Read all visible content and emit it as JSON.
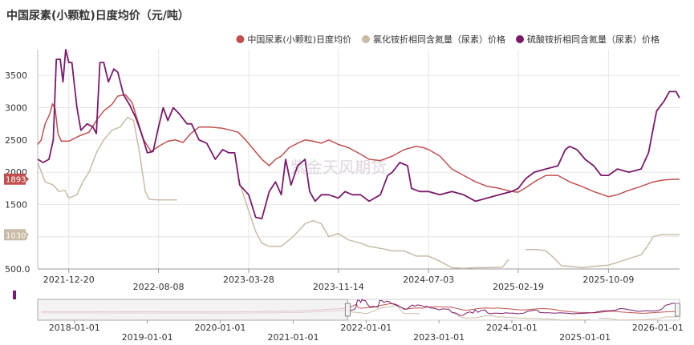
{
  "chart_data": {
    "type": "line",
    "title": "中国尿素(小颗粒)日度均价（元/吨）",
    "legend_position": "top-right",
    "grid": true,
    "ylim": [
      500,
      3900
    ],
    "y_ticks": [
      "3500",
      "3000",
      "2500",
      "2000",
      "1500",
      "1000",
      "500.0"
    ],
    "y_tick_values": [
      3500,
      3000,
      2500,
      2000,
      1500,
      1000,
      500
    ],
    "x_range": [
      "2021-10-01",
      "2026-04-10"
    ],
    "x_ticks": [
      "2021-12-20",
      "2022-08-08",
      "2023-03-28",
      "2023-11-14",
      "2024-07-03",
      "2025-02-19",
      "2025-10-09"
    ],
    "watermark": "紫金天风期货",
    "end_badges": [
      {
        "label": "1893",
        "value": 1893,
        "color": "#c0504d"
      },
      {
        "label": "1030",
        "value": 1030,
        "color": "#c9bba5"
      }
    ],
    "series": [
      {
        "name": "中国尿素(小颗粒)日度均价",
        "color": "#c0504d",
        "points": [
          [
            "2021-10-01",
            2430
          ],
          [
            "2021-10-10",
            2500
          ],
          [
            "2021-10-20",
            2750
          ],
          [
            "2021-11-01",
            2900
          ],
          [
            "2021-11-08",
            3060
          ],
          [
            "2021-11-15",
            2980
          ],
          [
            "2021-11-22",
            2600
          ],
          [
            "2021-12-01",
            2480
          ],
          [
            "2021-12-20",
            2480
          ],
          [
            "2022-01-15",
            2560
          ],
          [
            "2022-02-10",
            2620
          ],
          [
            "2022-03-01",
            2800
          ],
          [
            "2022-03-20",
            2950
          ],
          [
            "2022-04-10",
            3050
          ],
          [
            "2022-04-25",
            3180
          ],
          [
            "2022-05-15",
            3200
          ],
          [
            "2022-06-01",
            3080
          ],
          [
            "2022-06-15",
            2800
          ],
          [
            "2022-07-01",
            2500
          ],
          [
            "2022-07-20",
            2320
          ],
          [
            "2022-08-08",
            2400
          ],
          [
            "2022-09-01",
            2480
          ],
          [
            "2022-09-20",
            2500
          ],
          [
            "2022-10-10",
            2460
          ],
          [
            "2022-10-30",
            2600
          ],
          [
            "2022-11-20",
            2700
          ],
          [
            "2022-12-20",
            2700
          ],
          [
            "2023-01-20",
            2680
          ],
          [
            "2023-02-10",
            2650
          ],
          [
            "2023-03-01",
            2620
          ],
          [
            "2023-03-20",
            2500
          ],
          [
            "2023-04-10",
            2350
          ],
          [
            "2023-05-01",
            2200
          ],
          [
            "2023-05-20",
            2100
          ],
          [
            "2023-06-05",
            2200
          ],
          [
            "2023-06-20",
            2250
          ],
          [
            "2023-07-10",
            2380
          ],
          [
            "2023-08-01",
            2450
          ],
          [
            "2023-08-20",
            2500
          ],
          [
            "2023-09-10",
            2480
          ],
          [
            "2023-10-01",
            2450
          ],
          [
            "2023-10-20",
            2500
          ],
          [
            "2023-11-14",
            2430
          ],
          [
            "2023-12-10",
            2380
          ],
          [
            "2024-01-10",
            2280
          ],
          [
            "2024-02-01",
            2200
          ],
          [
            "2024-03-01",
            2180
          ],
          [
            "2024-04-01",
            2250
          ],
          [
            "2024-05-01",
            2350
          ],
          [
            "2024-06-01",
            2400
          ],
          [
            "2024-06-20",
            2380
          ],
          [
            "2024-07-03",
            2350
          ],
          [
            "2024-08-01",
            2250
          ],
          [
            "2024-09-01",
            2050
          ],
          [
            "2024-10-01",
            1950
          ],
          [
            "2024-11-01",
            1850
          ],
          [
            "2024-12-01",
            1780
          ],
          [
            "2025-01-01",
            1750
          ],
          [
            "2025-02-01",
            1700
          ],
          [
            "2025-02-19",
            1690
          ],
          [
            "2025-03-10",
            1760
          ],
          [
            "2025-04-01",
            1850
          ],
          [
            "2025-05-01",
            1950
          ],
          [
            "2025-06-01",
            1950
          ],
          [
            "2025-07-01",
            1850
          ],
          [
            "2025-08-01",
            1780
          ],
          [
            "2025-09-01",
            1700
          ],
          [
            "2025-10-09",
            1620
          ],
          [
            "2025-11-01",
            1650
          ],
          [
            "2025-12-01",
            1720
          ],
          [
            "2026-01-01",
            1780
          ],
          [
            "2026-02-01",
            1850
          ],
          [
            "2026-03-01",
            1880
          ],
          [
            "2026-04-10",
            1893
          ]
        ]
      },
      {
        "name": "氯化铵折相同含氮量（尿素）价格",
        "color": "#c9bba5",
        "points": [
          [
            "2021-10-01",
            2150
          ],
          [
            "2021-10-20",
            1850
          ],
          [
            "2021-11-10",
            1800
          ],
          [
            "2021-11-25",
            1700
          ],
          [
            "2021-12-10",
            1720
          ],
          [
            "2021-12-20",
            1600
          ],
          [
            "2022-01-10",
            1650
          ],
          [
            "2022-01-25",
            1850
          ],
          [
            "2022-02-10",
            2000
          ],
          [
            "2022-03-01",
            2300
          ],
          [
            "2022-03-20",
            2500
          ],
          [
            "2022-04-10",
            2650
          ],
          [
            "2022-05-01",
            2700
          ],
          [
            "2022-05-20",
            2850
          ],
          [
            "2022-06-05",
            2800
          ],
          [
            "2022-06-20",
            2300
          ],
          [
            "2022-07-05",
            1700
          ],
          [
            "2022-07-15",
            1580
          ],
          [
            "2022-08-08",
            1570
          ],
          [
            "2022-09-01",
            1570
          ],
          [
            "2022-09-25",
            1570
          ],
          [
            null,
            null
          ],
          [
            "2023-03-01",
            1900
          ],
          [
            "2023-03-28",
            1400
          ],
          [
            "2023-04-15",
            1080
          ],
          [
            "2023-05-01",
            900
          ],
          [
            "2023-05-20",
            850
          ],
          [
            "2023-06-20",
            850
          ],
          [
            "2023-07-20",
            1000
          ],
          [
            "2023-08-20",
            1200
          ],
          [
            "2023-09-10",
            1250
          ],
          [
            "2023-10-01",
            1200
          ],
          [
            "2023-10-20",
            1000
          ],
          [
            "2023-11-14",
            1050
          ],
          [
            "2023-12-10",
            950
          ],
          [
            "2024-01-10",
            900
          ],
          [
            "2024-02-01",
            850
          ],
          [
            "2024-03-01",
            820
          ],
          [
            "2024-04-01",
            780
          ],
          [
            "2024-05-01",
            780
          ],
          [
            "2024-06-01",
            700
          ],
          [
            "2024-07-03",
            700
          ],
          [
            "2024-08-01",
            620
          ],
          [
            "2024-09-01",
            520
          ],
          [
            "2024-10-01",
            510
          ],
          [
            "2024-11-01",
            520
          ],
          [
            "2024-12-01",
            520
          ],
          [
            "2025-01-10",
            530
          ],
          [
            "2025-01-25",
            650
          ],
          [
            null,
            null
          ],
          [
            "2025-03-10",
            800
          ],
          [
            "2025-04-10",
            800
          ],
          [
            "2025-05-01",
            780
          ],
          [
            "2025-05-20",
            680
          ],
          [
            "2025-06-10",
            550
          ],
          [
            "2025-07-01",
            540
          ],
          [
            "2025-08-01",
            520
          ],
          [
            "2025-09-01",
            540
          ],
          [
            "2025-10-09",
            560
          ],
          [
            "2025-11-01",
            600
          ],
          [
            "2025-12-01",
            660
          ],
          [
            "2026-01-01",
            720
          ],
          [
            "2026-01-20",
            880
          ],
          [
            "2026-02-01",
            1000
          ],
          [
            "2026-02-20",
            1030
          ],
          [
            "2026-04-10",
            1030
          ]
        ]
      },
      {
        "name": "硫酸铵折相同含氮量（尿素）价格",
        "color": "#7b1a6b",
        "points": [
          [
            "2021-10-01",
            2200
          ],
          [
            "2021-10-15",
            2150
          ],
          [
            "2021-10-30",
            2200
          ],
          [
            "2021-11-10",
            2500
          ],
          [
            "2021-11-18",
            3750
          ],
          [
            "2021-11-28",
            3750
          ],
          [
            "2021-12-05",
            3400
          ],
          [
            "2021-12-12",
            3900
          ],
          [
            "2021-12-20",
            3700
          ],
          [
            "2021-12-28",
            3700
          ],
          [
            "2022-01-10",
            3000
          ],
          [
            "2022-01-20",
            2650
          ],
          [
            "2022-02-05",
            2750
          ],
          [
            "2022-02-20",
            2700
          ],
          [
            "2022-03-01",
            2600
          ],
          [
            "2022-03-10",
            3700
          ],
          [
            "2022-03-20",
            3700
          ],
          [
            "2022-04-01",
            3400
          ],
          [
            "2022-04-15",
            3600
          ],
          [
            "2022-04-25",
            3550
          ],
          [
            "2022-05-10",
            3200
          ],
          [
            "2022-05-25",
            3050
          ],
          [
            "2022-06-10",
            2850
          ],
          [
            "2022-06-25",
            2600
          ],
          [
            "2022-07-10",
            2300
          ],
          [
            "2022-07-25",
            2320
          ],
          [
            "2022-08-08",
            2700
          ],
          [
            "2022-08-20",
            3000
          ],
          [
            "2022-09-01",
            2800
          ],
          [
            "2022-09-15",
            3000
          ],
          [
            "2022-10-01",
            2900
          ],
          [
            "2022-10-20",
            2750
          ],
          [
            "2022-11-01",
            2750
          ],
          [
            "2022-11-20",
            2500
          ],
          [
            "2022-12-10",
            2450
          ],
          [
            "2023-01-01",
            2200
          ],
          [
            "2023-01-20",
            2350
          ],
          [
            "2023-02-05",
            2300
          ],
          [
            "2023-02-20",
            2300
          ],
          [
            "2023-03-05",
            1800
          ],
          [
            "2023-03-28",
            1650
          ],
          [
            "2023-04-15",
            1300
          ],
          [
            "2023-05-01",
            1280
          ],
          [
            "2023-05-20",
            1700
          ],
          [
            "2023-06-05",
            1850
          ],
          [
            "2023-06-20",
            1650
          ],
          [
            "2023-07-01",
            2200
          ],
          [
            "2023-07-15",
            1800
          ],
          [
            "2023-08-01",
            2100
          ],
          [
            "2023-08-20",
            2200
          ],
          [
            "2023-09-01",
            1700
          ],
          [
            "2023-09-15",
            1550
          ],
          [
            "2023-10-01",
            1650
          ],
          [
            "2023-10-20",
            1650
          ],
          [
            "2023-11-14",
            1600
          ],
          [
            "2023-12-01",
            1700
          ],
          [
            "2023-12-20",
            1650
          ],
          [
            "2024-01-10",
            1650
          ],
          [
            "2024-02-01",
            1550
          ],
          [
            "2024-03-01",
            1650
          ],
          [
            "2024-03-20",
            1950
          ],
          [
            "2024-04-01",
            2000
          ],
          [
            "2024-04-20",
            2150
          ],
          [
            "2024-05-10",
            2100
          ],
          [
            "2024-05-20",
            1750
          ],
          [
            "2024-06-10",
            1700
          ],
          [
            "2024-07-03",
            1700
          ],
          [
            "2024-08-01",
            1650
          ],
          [
            "2024-09-01",
            1700
          ],
          [
            "2024-10-01",
            1650
          ],
          [
            "2024-11-01",
            1550
          ],
          [
            "2024-12-01",
            1600
          ],
          [
            "2025-01-01",
            1650
          ],
          [
            "2025-02-01",
            1700
          ],
          [
            "2025-02-19",
            1750
          ],
          [
            "2025-03-10",
            1900
          ],
          [
            "2025-04-01",
            2000
          ],
          [
            "2025-05-01",
            2050
          ],
          [
            "2025-06-01",
            2100
          ],
          [
            "2025-06-20",
            2350
          ],
          [
            "2025-07-01",
            2400
          ],
          [
            "2025-07-20",
            2350
          ],
          [
            "2025-08-10",
            2200
          ],
          [
            "2025-09-01",
            2100
          ],
          [
            "2025-09-20",
            1950
          ],
          [
            "2025-10-09",
            1950
          ],
          [
            "2025-11-01",
            2050
          ],
          [
            "2025-12-01",
            2000
          ],
          [
            "2026-01-01",
            2050
          ],
          [
            "2026-01-20",
            2300
          ],
          [
            "2026-02-10",
            2950
          ],
          [
            "2026-03-01",
            3100
          ],
          [
            "2026-03-15",
            3250
          ],
          [
            "2026-04-01",
            3250
          ],
          [
            "2026-04-10",
            3150
          ]
        ]
      }
    ],
    "navigator": {
      "x_ticks": [
        "2018-01-01",
        "2019-01-01",
        "2020-01-01",
        "2021-01-01",
        "2022-01-01",
        "2023-01-01",
        "2024-01-01",
        "2025-01-01",
        "2026-01-01"
      ],
      "range": [
        "2017-07-01",
        "2026-04-20"
      ],
      "selected": [
        "2021-10-01",
        "2026-04-10"
      ]
    }
  }
}
